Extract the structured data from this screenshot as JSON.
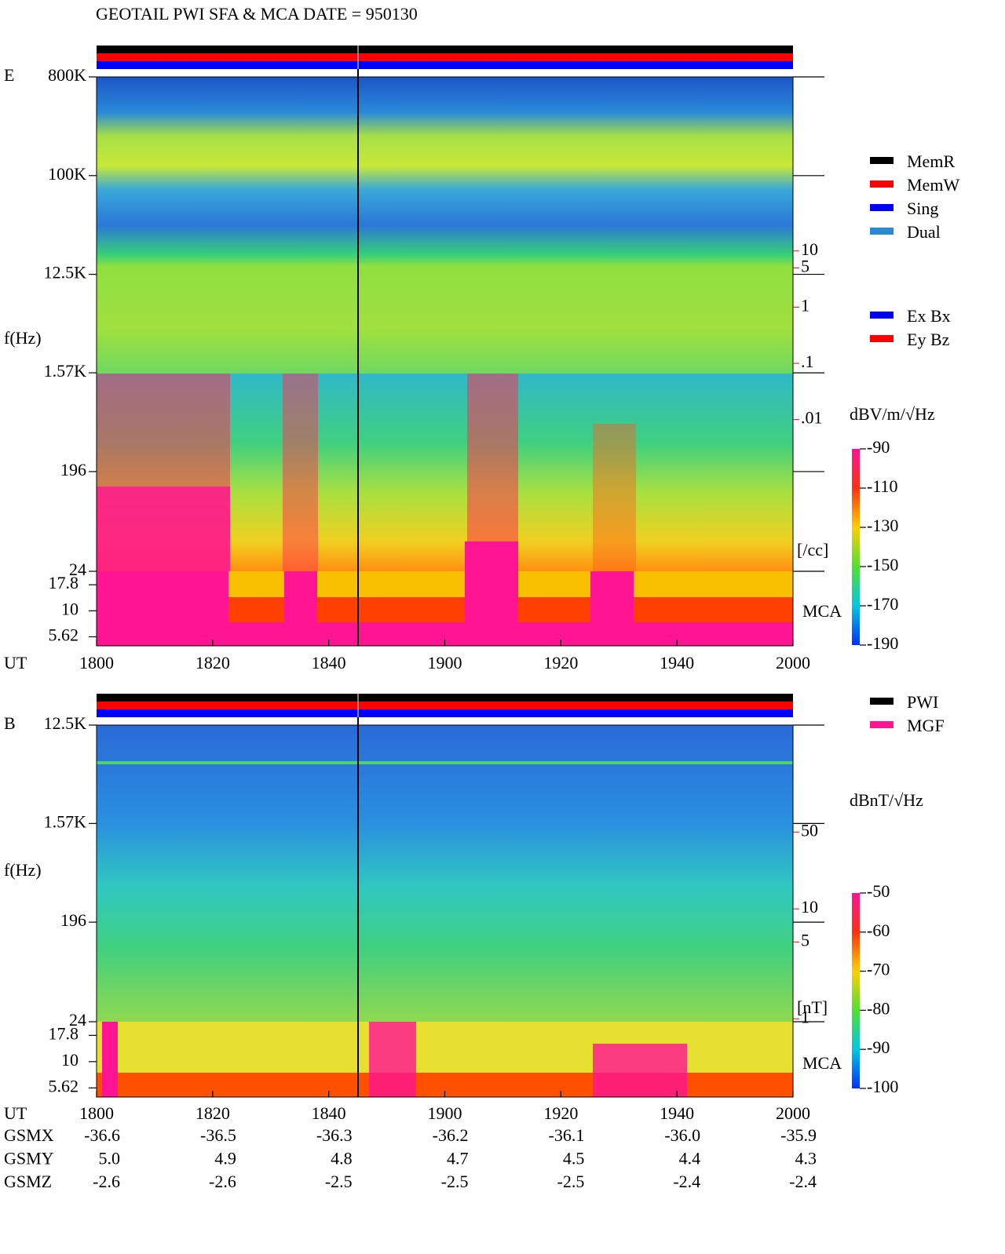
{
  "title": "GEOTAIL  PWI SFA & MCA   DATE = 950130",
  "chart_data": [
    {
      "type": "spectrogram",
      "panel_label": "E",
      "ylabel": "f(Hz)",
      "xlabel": "UT",
      "categories": [
        "1800",
        "1820",
        "1840",
        "1900",
        "1920",
        "1940",
        "2000"
      ],
      "log_scale": true,
      "ylim": [
        24,
        800000
      ],
      "yticks": [
        {
          "value": 800000,
          "label": "800K"
        },
        {
          "value": 100000,
          "label": "100K"
        },
        {
          "value": 12500,
          "label": "12.5K"
        },
        {
          "value": 1570,
          "label": "1.57K"
        },
        196,
        24
      ],
      "mca_label": "MCA",
      "mca_ylim": [
        4.6,
        24
      ],
      "mca_yticks": [
        17.8,
        10,
        5.62
      ],
      "y2label": "[/cc]",
      "y2lim": [
        2e-05,
        12500
      ],
      "y2ticks": [
        10,
        5,
        1,
        {
          "value": 0.1,
          "label": ".1"
        },
        {
          "value": 0.01,
          "label": ".01"
        }
      ],
      "colorbar": {
        "label": "dBV/m/√Hz",
        "lim": [
          -190,
          -90
        ],
        "ticks": [
          -90,
          -110,
          -130,
          -150,
          -170,
          -190
        ]
      },
      "legend": [
        {
          "name": "MemR",
          "color": "#000000"
        },
        {
          "name": "MemW",
          "color": "#ff0000"
        },
        {
          "name": "Sing",
          "color": "#0000ff"
        },
        {
          "name": "Dual",
          "color": "#2a8ad0"
        }
      ],
      "legend2": [
        {
          "name": "Ex Bx",
          "color": "#0000ff"
        },
        {
          "name": "Ey Bz",
          "color": "#ff0000"
        }
      ]
    },
    {
      "type": "spectrogram",
      "panel_label": "B",
      "ylabel": "f(Hz)",
      "xlabel": "UT",
      "categories": [
        "1800",
        "1820",
        "1840",
        "1900",
        "1920",
        "1940",
        "2000"
      ],
      "log_scale": true,
      "ylim": [
        24,
        12500
      ],
      "yticks": [
        {
          "value": 12500,
          "label": "12.5K"
        },
        {
          "value": 1570,
          "label": "1.57K"
        },
        196,
        24
      ],
      "mca_label": "MCA",
      "mca_ylim": [
        4.6,
        24
      ],
      "mca_yticks": [
        17.8,
        10,
        5.62
      ],
      "y2label": "[nT]",
      "y2lim": [
        0.94,
        470
      ],
      "y2ticks": [
        50,
        10,
        5,
        1
      ],
      "colorbar": {
        "label": "dBnT/√Hz",
        "lim": [
          -100,
          -50
        ],
        "ticks": [
          -50,
          -60,
          -70,
          -80,
          -90,
          -100
        ]
      },
      "legend": [
        {
          "name": "PWI",
          "color": "#000000"
        },
        {
          "name": "MGF",
          "color": "#ff1493"
        }
      ]
    }
  ],
  "orbit": {
    "rows": [
      {
        "label": "GSMX",
        "values": [
          "-36.6",
          "-36.5",
          "-36.3",
          "-36.2",
          "-36.1",
          "-36.0",
          "-35.9"
        ]
      },
      {
        "label": "GSMY",
        "values": [
          "5.0",
          "4.9",
          "4.8",
          "4.7",
          "4.5",
          "4.4",
          "4.3"
        ]
      },
      {
        "label": "GSMZ",
        "values": [
          "-2.6",
          "-2.6",
          "-2.5",
          "-2.5",
          "-2.5",
          "-2.4",
          "-2.4"
        ]
      }
    ]
  }
}
